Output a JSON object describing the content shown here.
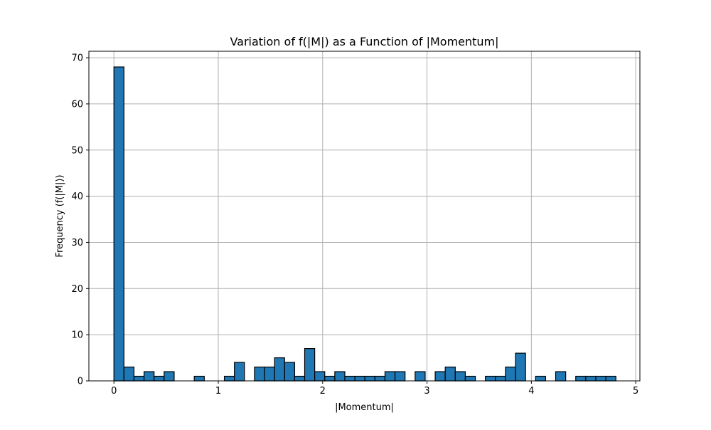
{
  "chart_data": {
    "type": "bar",
    "title": "Variation of f(|M|) as a Function of |Momentum|",
    "xlabel": "|Momentum|",
    "ylabel": "Frequency (f(|M|))",
    "xlim": [
      -0.24,
      5.04
    ],
    "ylim": [
      0,
      71.4
    ],
    "xticks": [
      0,
      1,
      2,
      3,
      4,
      5
    ],
    "yticks": [
      0,
      10,
      20,
      30,
      40,
      50,
      60,
      70
    ],
    "grid": true,
    "bin_start": 0.0,
    "bin_width": 0.0962,
    "values": [
      68,
      3,
      1,
      2,
      1,
      2,
      0,
      0,
      1,
      0,
      0,
      1,
      4,
      0,
      3,
      3,
      5,
      4,
      1,
      7,
      2,
      1,
      2,
      1,
      1,
      1,
      1,
      2,
      2,
      0,
      2,
      0,
      2,
      3,
      2,
      1,
      0,
      1,
      1,
      3,
      6,
      0,
      1,
      0,
      2,
      0,
      1,
      1,
      1,
      1
    ],
    "bar_color": "#1f77b4",
    "edge_color": "#000000"
  }
}
